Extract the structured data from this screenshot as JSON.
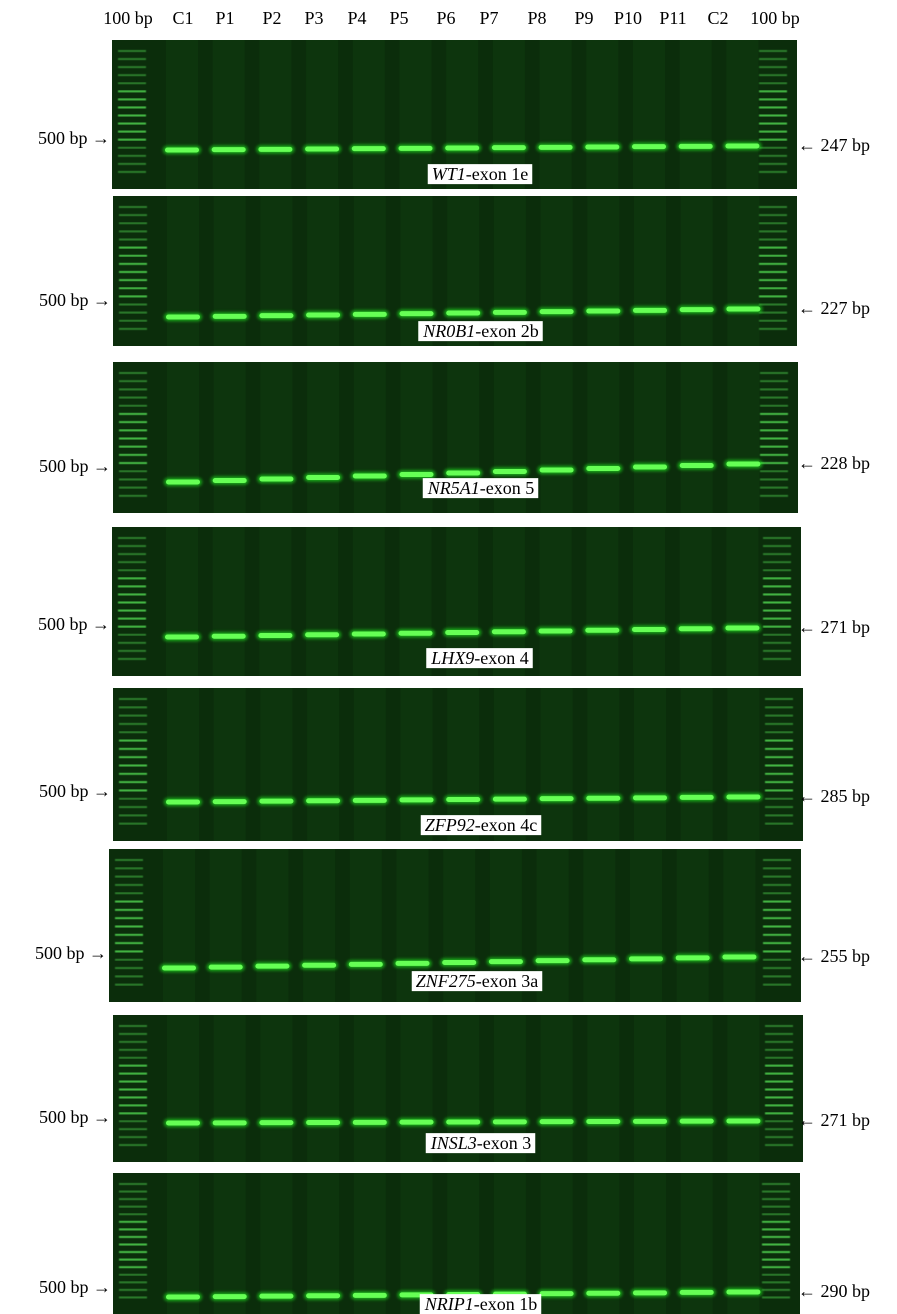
{
  "lanes": [
    "100 bp",
    "C1",
    "P1",
    "P2",
    "P3",
    "P4",
    "P5",
    "P6",
    "P7",
    "P8",
    "P9",
    "P10",
    "P11",
    "C2",
    "100 bp"
  ],
  "gels": [
    {
      "gene": "WT1",
      "exon": "-exon 1e",
      "marker": "500 bp →",
      "size": "← 247 bp"
    },
    {
      "gene": "NR0B1",
      "exon": "-exon 2b",
      "marker": "500 bp →",
      "size": "← 227 bp"
    },
    {
      "gene": "NR5A1",
      "exon": "-exon 5",
      "marker": "500 bp →",
      "size": "← 228 bp"
    },
    {
      "gene": "LHX9",
      "exon": "-exon 4",
      "marker": "500 bp →",
      "size": "← 271 bp"
    },
    {
      "gene": "ZFP92",
      "exon": "-exon 4c",
      "marker": "500 bp →",
      "size": "← 285 bp"
    },
    {
      "gene": "ZNF275",
      "exon": "-exon 3a",
      "marker": "500 bp →",
      "size": "← 255 bp"
    },
    {
      "gene": "INSL3",
      "exon": "-exon 3",
      "marker": "500 bp →",
      "size": "← 271 bp"
    },
    {
      "gene": "NRIP1",
      "exon": "-exon 1b",
      "marker": "500 bp →",
      "size": "← 290 bp"
    }
  ]
}
